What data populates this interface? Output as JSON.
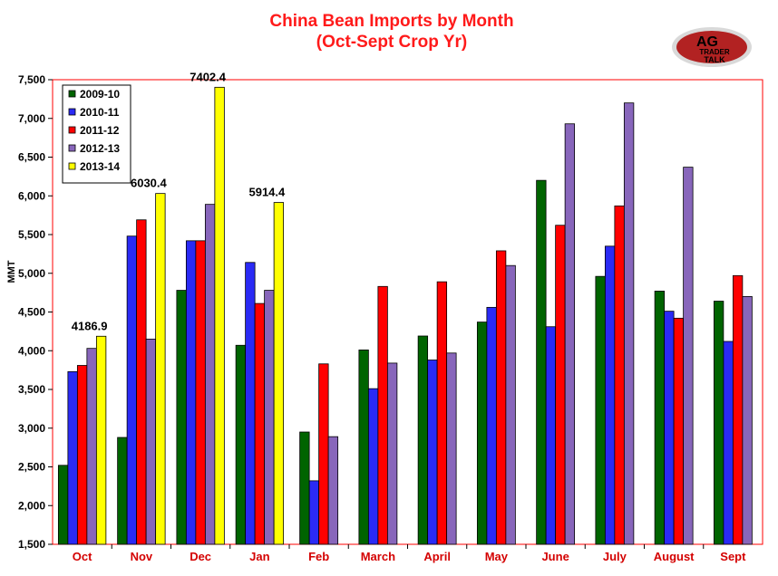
{
  "chart_data": {
    "type": "bar",
    "title": "China Bean Imports by Month",
    "subtitle": "(Oct-Sept Crop Yr)",
    "ylabel": "MMT",
    "xlabel": "",
    "ylim": [
      1500,
      7500
    ],
    "yticks": [
      1500,
      2000,
      2500,
      3000,
      3500,
      4000,
      4500,
      5000,
      5500,
      6000,
      6500,
      7000,
      7500
    ],
    "ytick_labels": [
      "1,500",
      "2,000",
      "2,500",
      "3,000",
      "3,500",
      "4,000",
      "4,500",
      "5,000",
      "5,500",
      "6,000",
      "6,500",
      "7,000",
      "7,500"
    ],
    "categories": [
      "Oct",
      "Nov",
      "Dec",
      "Jan",
      "Feb",
      "March",
      "April",
      "May",
      "June",
      "July",
      "August",
      "Sept"
    ],
    "series": [
      {
        "name": "2009-10",
        "color": "#006400",
        "values": [
          2520,
          2880,
          4780,
          4070,
          2950,
          4010,
          4190,
          4370,
          6200,
          4960,
          4770,
          4640
        ]
      },
      {
        "name": "2010-11",
        "color": "#2a2af5",
        "values": [
          3730,
          5480,
          5420,
          5140,
          2320,
          3510,
          3880,
          4560,
          4310,
          5350,
          4510,
          4120
        ]
      },
      {
        "name": "2011-12",
        "color": "#ff0000",
        "values": [
          3810,
          5690,
          5420,
          4610,
          3830,
          4830,
          4890,
          5290,
          5620,
          5870,
          4420,
          4970
        ]
      },
      {
        "name": "2012-13",
        "color": "#8866bb",
        "values": [
          4030,
          4150,
          5890,
          4780,
          2890,
          3840,
          3970,
          5100,
          6930,
          7200,
          6370,
          4700
        ]
      },
      {
        "name": "2013-14",
        "color": "#ffff00",
        "values": [
          4186.9,
          6030.4,
          7402.4,
          5914.4,
          null,
          null,
          null,
          null,
          null,
          null,
          null,
          null
        ]
      }
    ],
    "data_labels": [
      {
        "category": "Oct",
        "series": "2013-14",
        "text": "4186.9"
      },
      {
        "category": "Nov",
        "series": "2013-14",
        "text": "6030.4"
      },
      {
        "category": "Dec",
        "series": "2013-14",
        "text": "7402.4"
      },
      {
        "category": "Jan",
        "series": "2013-14",
        "text": "5914.4"
      }
    ],
    "legend_position": "top-left",
    "grid": false
  },
  "logo": {
    "line1": "AG",
    "line2": "TRADER",
    "line3": "TALK",
    "colors": {
      "oval": "#b22222",
      "ring": "#d9d9d9"
    }
  },
  "colors": {
    "plot_border": "#ff0000",
    "title": "#ff1a1a",
    "category_labels": "#d40000"
  }
}
